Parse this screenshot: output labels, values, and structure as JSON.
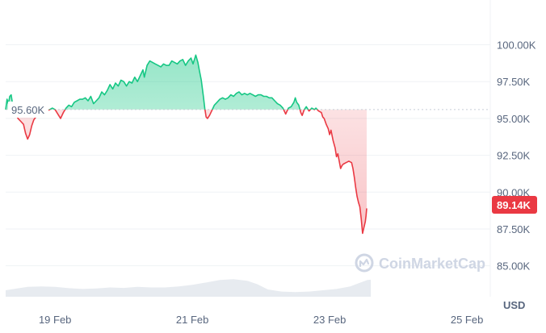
{
  "chart_data": {
    "type": "line",
    "title": "",
    "xlabel": "",
    "ylabel": "",
    "unit": "USD",
    "watermark": "CoinMarketCap",
    "x_tick_labels": [
      {
        "day": 1,
        "label": "19 Feb"
      },
      {
        "day": 3,
        "label": "21 Feb"
      },
      {
        "day": 5,
        "label": "23 Feb"
      },
      {
        "day": 7,
        "label": "25 Feb"
      }
    ],
    "y_tick_labels": [
      {
        "value": 100000,
        "label": "100.00K"
      },
      {
        "value": 97500,
        "label": "97.50K"
      },
      {
        "value": 95000,
        "label": "95.00K"
      },
      {
        "value": 92500,
        "label": "92.50K"
      },
      {
        "value": 90000,
        "label": "90.00K"
      },
      {
        "value": 87500,
        "label": "87.50K"
      },
      {
        "value": 85000,
        "label": "85.00K"
      }
    ],
    "ylim": [
      82900,
      102600
    ],
    "xlim": [
      0.28,
      7.34
    ],
    "reference_price": 95600,
    "reference_label": "95.60K",
    "current_price": 89140,
    "current_label": "89.14K",
    "colors": {
      "up": "#16c784",
      "down": "#ea3943",
      "grid": "#eff2f5",
      "volume": "#e7ebf0",
      "label_bg": "#ffffff",
      "current_bg": "#ea3943"
    },
    "price_series": [
      [
        0.28,
        95.6
      ],
      [
        0.3,
        96.3
      ],
      [
        0.32,
        96.0
      ],
      [
        0.34,
        96.5
      ],
      [
        0.36,
        96.6
      ],
      [
        0.38,
        96.0
      ],
      [
        0.42,
        95.4
      ],
      [
        0.46,
        95.0
      ],
      [
        0.5,
        94.8
      ],
      [
        0.54,
        94.6
      ],
      [
        0.57,
        94.0
      ],
      [
        0.6,
        93.6
      ],
      [
        0.63,
        93.9
      ],
      [
        0.66,
        94.5
      ],
      [
        0.69,
        94.9
      ],
      [
        0.72,
        95.1
      ],
      [
        0.76,
        95.4
      ],
      [
        0.8,
        95.5
      ],
      [
        0.84,
        95.4
      ],
      [
        0.88,
        95.5
      ],
      [
        0.92,
        95.6
      ],
      [
        0.96,
        95.7
      ],
      [
        1.0,
        95.6
      ],
      [
        1.04,
        95.3
      ],
      [
        1.08,
        95.0
      ],
      [
        1.12,
        95.4
      ],
      [
        1.16,
        95.7
      ],
      [
        1.2,
        95.9
      ],
      [
        1.24,
        95.8
      ],
      [
        1.28,
        96.1
      ],
      [
        1.32,
        96.2
      ],
      [
        1.36,
        96.3
      ],
      [
        1.4,
        96.3
      ],
      [
        1.44,
        96.4
      ],
      [
        1.48,
        96.2
      ],
      [
        1.52,
        96.5
      ],
      [
        1.56,
        96.0
      ],
      [
        1.6,
        96.2
      ],
      [
        1.64,
        96.4
      ],
      [
        1.68,
        96.8
      ],
      [
        1.72,
        96.6
      ],
      [
        1.76,
        96.9
      ],
      [
        1.8,
        97.3
      ],
      [
        1.84,
        97.0
      ],
      [
        1.88,
        97.4
      ],
      [
        1.92,
        97.2
      ],
      [
        1.96,
        97.6
      ],
      [
        2.0,
        97.5
      ],
      [
        2.04,
        97.2
      ],
      [
        2.08,
        97.5
      ],
      [
        2.12,
        97.4
      ],
      [
        2.16,
        97.8
      ],
      [
        2.2,
        97.5
      ],
      [
        2.24,
        97.9
      ],
      [
        2.28,
        98.3
      ],
      [
        2.3,
        97.8
      ],
      [
        2.34,
        98.6
      ],
      [
        2.38,
        98.9
      ],
      [
        2.42,
        98.8
      ],
      [
        2.46,
        98.7
      ],
      [
        2.5,
        98.6
      ],
      [
        2.54,
        98.5
      ],
      [
        2.58,
        98.7
      ],
      [
        2.62,
        98.6
      ],
      [
        2.66,
        98.6
      ],
      [
        2.7,
        98.9
      ],
      [
        2.74,
        98.8
      ],
      [
        2.78,
        98.7
      ],
      [
        2.82,
        98.9
      ],
      [
        2.86,
        99.0
      ],
      [
        2.9,
        98.6
      ],
      [
        2.94,
        98.9
      ],
      [
        2.98,
        99.1
      ],
      [
        3.01,
        98.7
      ],
      [
        3.05,
        99.3
      ],
      [
        3.08,
        98.8
      ],
      [
        3.1,
        98.3
      ],
      [
        3.13,
        97.6
      ],
      [
        3.16,
        96.5
      ],
      [
        3.18,
        95.7
      ],
      [
        3.2,
        95.1
      ],
      [
        3.22,
        95.0
      ],
      [
        3.25,
        95.2
      ],
      [
        3.28,
        95.5
      ],
      [
        3.32,
        95.9
      ],
      [
        3.36,
        96.1
      ],
      [
        3.4,
        96.3
      ],
      [
        3.44,
        96.4
      ],
      [
        3.48,
        96.3
      ],
      [
        3.52,
        96.4
      ],
      [
        3.56,
        96.6
      ],
      [
        3.6,
        96.5
      ],
      [
        3.64,
        96.7
      ],
      [
        3.68,
        96.8
      ],
      [
        3.72,
        96.6
      ],
      [
        3.76,
        96.7
      ],
      [
        3.8,
        96.6
      ],
      [
        3.84,
        96.7
      ],
      [
        3.88,
        96.6
      ],
      [
        3.92,
        96.5
      ],
      [
        3.96,
        96.6
      ],
      [
        4.0,
        96.6
      ],
      [
        4.04,
        96.5
      ],
      [
        4.08,
        96.5
      ],
      [
        4.12,
        96.4
      ],
      [
        4.16,
        96.4
      ],
      [
        4.2,
        96.2
      ],
      [
        4.24,
        96.0
      ],
      [
        4.28,
        95.9
      ],
      [
        4.32,
        95.7
      ],
      [
        4.34,
        95.5
      ],
      [
        4.36,
        95.3
      ],
      [
        4.38,
        95.5
      ],
      [
        4.4,
        95.7
      ],
      [
        4.44,
        95.8
      ],
      [
        4.48,
        96.1
      ],
      [
        4.5,
        96.4
      ],
      [
        4.52,
        96.1
      ],
      [
        4.55,
        95.9
      ],
      [
        4.58,
        95.4
      ],
      [
        4.6,
        95.2
      ],
      [
        4.63,
        95.6
      ],
      [
        4.66,
        95.8
      ],
      [
        4.7,
        95.5
      ],
      [
        4.74,
        95.7
      ],
      [
        4.78,
        95.6
      ],
      [
        4.8,
        95.7
      ],
      [
        4.84,
        95.5
      ],
      [
        4.88,
        95.4
      ],
      [
        4.9,
        95.1
      ],
      [
        4.92,
        95.0
      ],
      [
        4.95,
        94.6
      ],
      [
        4.98,
        94.3
      ],
      [
        5.0,
        93.9
      ],
      [
        5.02,
        94.2
      ],
      [
        5.05,
        93.5
      ],
      [
        5.08,
        93.0
      ],
      [
        5.1,
        92.4
      ],
      [
        5.12,
        92.6
      ],
      [
        5.14,
        92.1
      ],
      [
        5.16,
        91.6
      ],
      [
        5.18,
        91.8
      ],
      [
        5.2,
        91.9
      ],
      [
        5.24,
        92.0
      ],
      [
        5.28,
        92.1
      ],
      [
        5.32,
        92.0
      ],
      [
        5.34,
        91.6
      ],
      [
        5.36,
        91.0
      ],
      [
        5.38,
        90.3
      ],
      [
        5.4,
        89.7
      ],
      [
        5.42,
        89.3
      ],
      [
        5.44,
        89.0
      ],
      [
        5.46,
        88.2
      ],
      [
        5.48,
        87.2
      ],
      [
        5.5,
        87.6
      ],
      [
        5.52,
        88.0
      ],
      [
        5.53,
        88.4
      ],
      [
        5.54,
        88.9
      ]
    ],
    "volume_series": [
      [
        0.28,
        0.25
      ],
      [
        0.4,
        0.3
      ],
      [
        0.6,
        0.38
      ],
      [
        0.8,
        0.4
      ],
      [
        1.0,
        0.38
      ],
      [
        1.2,
        0.33
      ],
      [
        1.4,
        0.3
      ],
      [
        1.6,
        0.32
      ],
      [
        1.8,
        0.36
      ],
      [
        2.0,
        0.34
      ],
      [
        2.2,
        0.38
      ],
      [
        2.4,
        0.36
      ],
      [
        2.6,
        0.36
      ],
      [
        2.8,
        0.4
      ],
      [
        3.0,
        0.46
      ],
      [
        3.2,
        0.55
      ],
      [
        3.4,
        0.65
      ],
      [
        3.6,
        0.68
      ],
      [
        3.8,
        0.62
      ],
      [
        3.95,
        0.48
      ],
      [
        4.1,
        0.28
      ],
      [
        4.3,
        0.2
      ],
      [
        4.5,
        0.18
      ],
      [
        4.7,
        0.2
      ],
      [
        4.9,
        0.25
      ],
      [
        5.1,
        0.3
      ],
      [
        5.3,
        0.4
      ],
      [
        5.45,
        0.55
      ],
      [
        5.55,
        0.65
      ],
      [
        5.6,
        0.66
      ]
    ]
  }
}
